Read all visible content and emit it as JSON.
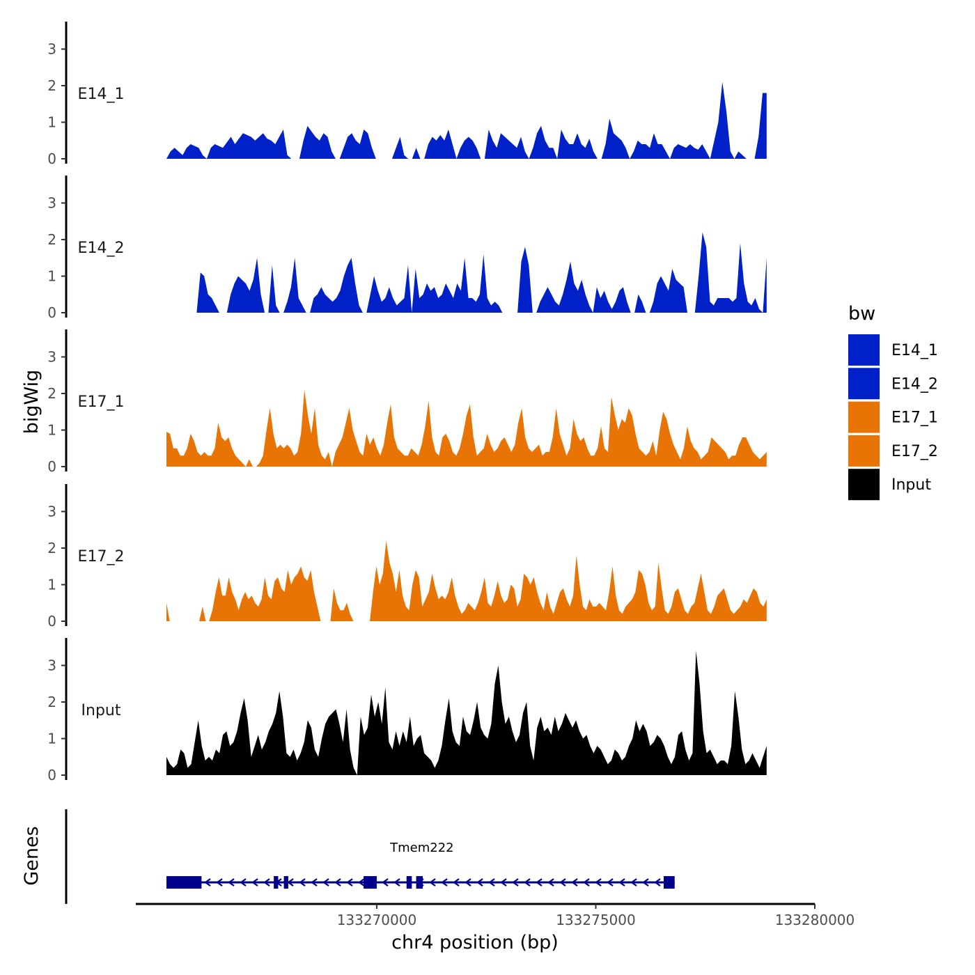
{
  "chart_data": {
    "type": "area",
    "ylabel": "bigWig",
    "xlabel": "chr4 position (bp)",
    "xlim": [
      133264500,
      133280000
    ],
    "ylim": [
      0,
      3.7
    ],
    "x_start": 133265200,
    "x_end": 133278900,
    "y_ticks": [
      0,
      1,
      2,
      3
    ],
    "x_ticks": [
      133270000,
      133275000,
      133280000
    ],
    "x_tick_labels": [
      "133270000",
      "133275000",
      "133280000"
    ],
    "gene_track_label": "Genes",
    "legend": {
      "title": "bw",
      "position": "right",
      "entries": [
        {
          "name": "E14_1",
          "color": "#0020c8"
        },
        {
          "name": "E14_2",
          "color": "#0020c8"
        },
        {
          "name": "E17_1",
          "color": "#e87406"
        },
        {
          "name": "E17_2",
          "color": "#e87406"
        },
        {
          "name": "Input",
          "color": "#000000"
        }
      ]
    },
    "series": [
      {
        "name": "E14_1",
        "color": "#0020c8",
        "values": [
          0,
          0.2,
          0.3,
          0.2,
          0.1,
          0.3,
          0.4,
          0.35,
          0.3,
          0.1,
          0,
          0.3,
          0.4,
          0.35,
          0.3,
          0.45,
          0.6,
          0.4,
          0.55,
          0.7,
          0.65,
          0.6,
          0.5,
          0.6,
          0.7,
          0.55,
          0.5,
          0.4,
          0.6,
          0.8,
          0.1,
          0,
          0,
          0,
          0.5,
          0.9,
          0.75,
          0.6,
          0.5,
          0.7,
          0.6,
          0.2,
          0,
          0,
          0.3,
          0.6,
          0.7,
          0.5,
          0.4,
          0.8,
          0.7,
          0.3,
          0,
          0,
          0,
          0,
          0,
          0.3,
          0.6,
          0.1,
          0,
          0,
          0.3,
          0,
          0,
          0.4,
          0.6,
          0.5,
          0.65,
          0.5,
          0.8,
          0.4,
          0,
          0.3,
          0.5,
          0.6,
          0.5,
          0.3,
          0,
          0,
          0.8,
          0.5,
          0.3,
          0.7,
          0.6,
          0.5,
          0.4,
          0.3,
          0.6,
          0.2,
          0,
          0.3,
          0.7,
          0.9,
          0.5,
          0.3,
          0.3,
          0,
          0.8,
          0.55,
          0.4,
          0.4,
          0.7,
          0.4,
          0.3,
          0.55,
          0.2,
          0,
          0,
          0.4,
          1.1,
          0.7,
          0.6,
          0.5,
          0.3,
          0,
          0.2,
          0.5,
          0.4,
          0.4,
          0.3,
          0.7,
          0.4,
          0.4,
          0.2,
          0,
          0.3,
          0.4,
          0.35,
          0.3,
          0.4,
          0.3,
          0.25,
          0.4,
          0.2,
          0,
          0.5,
          1.0,
          2.1,
          1.3,
          0.2,
          0,
          0.2,
          0.1,
          0,
          0,
          0,
          0.6,
          1.8,
          1.8
        ]
      },
      {
        "name": "E14_2",
        "color": "#0020c8",
        "values": [
          0,
          0,
          0,
          0,
          0,
          0,
          0,
          0,
          0,
          1.1,
          1.0,
          0.5,
          0.4,
          0.2,
          0,
          0,
          0,
          0.5,
          0.8,
          1.0,
          0.9,
          0.8,
          0.6,
          0.9,
          1.5,
          0.5,
          0,
          0,
          1.3,
          0.2,
          0,
          0,
          0.3,
          0.7,
          1.5,
          0.4,
          0.2,
          0,
          0,
          0.4,
          0.5,
          0.7,
          0.5,
          0.4,
          0.3,
          0.4,
          0.6,
          1.0,
          1.3,
          1.5,
          0.8,
          0.2,
          0,
          0,
          0.5,
          1.0,
          0.6,
          0.3,
          0.4,
          0.7,
          0.4,
          0.2,
          0.3,
          0.4,
          1.3,
          0,
          1.2,
          0.4,
          0.5,
          0.8,
          0.6,
          0.7,
          0.4,
          0.5,
          0.8,
          0.6,
          0.4,
          0.8,
          0.6,
          1.5,
          0.4,
          0.4,
          0.3,
          0.5,
          1.6,
          0.4,
          0.2,
          0.3,
          0.2,
          0,
          0,
          0,
          0,
          0,
          1.4,
          1.8,
          1.3,
          0,
          0,
          0.3,
          0.5,
          0.7,
          0.5,
          0.3,
          0.2,
          0.5,
          0.9,
          1.4,
          0.8,
          0.6,
          0.9,
          0.5,
          0.2,
          0,
          0.7,
          0.4,
          0.6,
          0.3,
          0.1,
          0.3,
          0.6,
          0.7,
          0.3,
          0,
          0,
          0.5,
          0.3,
          0,
          0,
          0.3,
          0.8,
          1.0,
          0.8,
          0.6,
          1.2,
          0.9,
          0.8,
          0.7,
          0,
          0,
          0,
          1.0,
          2.2,
          1.8,
          0.3,
          0.2,
          0.4,
          0.4,
          0.4,
          0.4,
          0.3,
          0.4,
          1.9,
          0.8,
          0.3,
          0.2,
          0.4,
          0.1,
          0,
          1.5
        ]
      },
      {
        "name": "E17_1",
        "color": "#e87406",
        "values": [
          0.95,
          0.9,
          0.5,
          0.5,
          0.3,
          0.3,
          0.5,
          0.9,
          0.7,
          0.4,
          0.3,
          0.4,
          0.3,
          0.3,
          0.5,
          1.2,
          0.8,
          0.7,
          0.8,
          0.5,
          0.3,
          0.2,
          0.1,
          0,
          0.2,
          0,
          0,
          0.1,
          0.3,
          1.0,
          1.6,
          0.9,
          0.5,
          0.6,
          0.5,
          0.6,
          0.5,
          0.3,
          0.4,
          0.9,
          2.1,
          1.4,
          0.9,
          1.6,
          0.6,
          0.3,
          0.2,
          0.4,
          0,
          0.4,
          0.6,
          0.8,
          1.2,
          1.6,
          1.0,
          0.7,
          0.4,
          0.3,
          0.9,
          0.6,
          0.8,
          0.5,
          0.3,
          0.6,
          1.2,
          1.7,
          0.8,
          0.5,
          0.4,
          0.3,
          0.3,
          0.5,
          0.4,
          0.3,
          0.6,
          1.1,
          1.8,
          0.8,
          0.4,
          0.3,
          0.8,
          0.9,
          0.7,
          0.4,
          0.3,
          0.5,
          0.9,
          1.4,
          1.7,
          0.8,
          0.3,
          0.4,
          0.5,
          0.9,
          0.6,
          0.4,
          0.5,
          0.7,
          0.8,
          0.6,
          0.4,
          0.6,
          1.2,
          1.6,
          0.8,
          0.5,
          0.4,
          0.5,
          0.6,
          0.3,
          0.4,
          0.4,
          0.8,
          1.6,
          0.9,
          0.6,
          0.3,
          0.5,
          1.3,
          0.9,
          0.7,
          0.8,
          0.5,
          0.3,
          0.3,
          0.5,
          1.1,
          0.5,
          0.4,
          1.9,
          1.4,
          1.0,
          1.3,
          1.2,
          1.6,
          1.4,
          0.9,
          0.5,
          0.4,
          0.3,
          0.4,
          0.7,
          0.3,
          1.0,
          1.5,
          1.3,
          0.9,
          0.6,
          0.4,
          0.2,
          0.5,
          1.1,
          0.7,
          0.5,
          0.4,
          0.2,
          0.3,
          0.4,
          0.8,
          0.7,
          0.6,
          0.5,
          0.4,
          0.2,
          0.3,
          0.3,
          0.6,
          0.8,
          0.8,
          0.6,
          0.4,
          0.3,
          0.2,
          0.3,
          0.4
        ]
      },
      {
        "name": "E17_2",
        "color": "#e87406",
        "values": [
          0.5,
          0,
          0,
          0,
          0,
          0,
          0,
          0,
          0,
          0,
          0,
          0.4,
          0,
          0,
          0.3,
          0.8,
          1.2,
          0.7,
          0.7,
          1.2,
          0.8,
          0.6,
          0.3,
          0.6,
          0.8,
          0.6,
          0.7,
          0.5,
          0.4,
          0.6,
          1.2,
          0.7,
          0.6,
          1.1,
          1.2,
          0.9,
          0.8,
          1.4,
          1.0,
          1.2,
          1.3,
          1.5,
          1.2,
          1.1,
          1.4,
          0.8,
          0.4,
          0,
          0,
          0,
          0,
          0.9,
          0.5,
          0.3,
          0.3,
          0.5,
          0.2,
          0,
          0,
          0,
          0,
          0,
          0,
          0.8,
          1.5,
          1.0,
          1.3,
          2.2,
          1.6,
          1.3,
          0.8,
          1.4,
          0.7,
          0.4,
          0.3,
          1.0,
          1.4,
          1.2,
          0.4,
          0.6,
          0.8,
          1.3,
          0.9,
          0.6,
          0.7,
          0.6,
          0.8,
          1.2,
          0.7,
          0.4,
          0.2,
          0.3,
          0.5,
          0.4,
          0.3,
          0.5,
          0.8,
          1.2,
          0.5,
          0.4,
          0.7,
          1.1,
          0.7,
          0.5,
          0.6,
          1.0,
          0.9,
          0.4,
          0.6,
          1.3,
          1.2,
          1.0,
          1.2,
          0.8,
          0.5,
          0.3,
          0.8,
          0.4,
          0.2,
          0.5,
          0.8,
          0.9,
          0.6,
          0.4,
          0.7,
          1.8,
          1.0,
          0.4,
          0.3,
          0.6,
          0.4,
          0.4,
          0.5,
          0.4,
          0.3,
          0.8,
          1.5,
          0.7,
          0.3,
          0.2,
          0.4,
          0.5,
          0.6,
          0.8,
          1.4,
          1.3,
          1.0,
          0.5,
          0.3,
          0.4,
          1.6,
          0.9,
          0.3,
          0.2,
          0.4,
          0.8,
          0.9,
          0.6,
          0.3,
          0.2,
          0.4,
          0.5,
          0.9,
          1.3,
          0.8,
          0.3,
          0.2,
          0.4,
          0.7,
          0.8,
          0.9,
          0.6,
          0.3,
          0.2,
          0.3,
          0.4,
          0.6,
          0.5,
          0.7,
          0.9,
          0.8,
          0.5,
          0.4,
          0.6
        ]
      },
      {
        "name": "Input",
        "color": "#000000",
        "values": [
          0.5,
          0.3,
          0.2,
          0.3,
          0.7,
          0.6,
          0.2,
          0.3,
          0.9,
          1.5,
          0.8,
          0.4,
          0.5,
          0.4,
          0.7,
          0.6,
          1.1,
          1.2,
          0.8,
          0.9,
          1.2,
          1.7,
          2.1,
          1.5,
          0.5,
          0.8,
          1.1,
          0.7,
          0.9,
          1.2,
          1.4,
          1.7,
          2.3,
          1.6,
          0.6,
          0.5,
          0.7,
          0.4,
          0.6,
          0.9,
          1.5,
          1.3,
          0.7,
          0.5,
          1.0,
          1.4,
          1.6,
          1.7,
          1.8,
          1.4,
          0.9,
          1.8,
          0.7,
          0.2,
          0,
          1.6,
          1.1,
          1.3,
          2.2,
          1.6,
          2.0,
          1.4,
          2.4,
          0.9,
          0.7,
          1.2,
          0.8,
          1.2,
          0.9,
          1.6,
          0.8,
          1.0,
          1.1,
          0.6,
          0.5,
          0.4,
          0.2,
          0.4,
          0.8,
          1.5,
          2.1,
          1.2,
          0.9,
          0.8,
          1.6,
          1.2,
          1.1,
          1.5,
          2.0,
          1.3,
          1.1,
          1.0,
          1.4,
          2.5,
          3.0,
          2.0,
          1.4,
          1.6,
          1.2,
          0.9,
          1.1,
          1.7,
          2.0,
          0.8,
          0.4,
          1.3,
          1.6,
          1.2,
          1.3,
          1.1,
          1.6,
          1.2,
          1.4,
          1.7,
          1.5,
          1.3,
          1.5,
          1.2,
          1.0,
          1.1,
          0.8,
          0.6,
          0.8,
          0.7,
          0.5,
          0.3,
          0.4,
          0.7,
          0.6,
          0.4,
          0.5,
          0.8,
          1.0,
          1.5,
          1.2,
          1.4,
          1.2,
          0.8,
          0.9,
          1.1,
          1.0,
          0.8,
          0.5,
          0.3,
          0.5,
          1.1,
          1.2,
          0.7,
          0.4,
          0.6,
          3.4,
          2.5,
          1.2,
          0.6,
          0.7,
          0.5,
          0.3,
          0.4,
          0.4,
          0.3,
          0.8,
          2.3,
          1.6,
          0.7,
          0.3,
          0.4,
          0.6,
          0.4,
          0.2,
          0.5,
          0.8
        ]
      }
    ],
    "genes": [
      {
        "name": "Tmem222",
        "strand": "-",
        "start": 133265200,
        "end": 133276800,
        "exons": [
          [
            133265200,
            133266000
          ],
          [
            133267650,
            133267750
          ],
          [
            133267880,
            133267980
          ],
          [
            133269700,
            133270000
          ],
          [
            133270680,
            133270800
          ],
          [
            133270900,
            133271050
          ],
          [
            133276550,
            133276800
          ]
        ]
      }
    ]
  }
}
